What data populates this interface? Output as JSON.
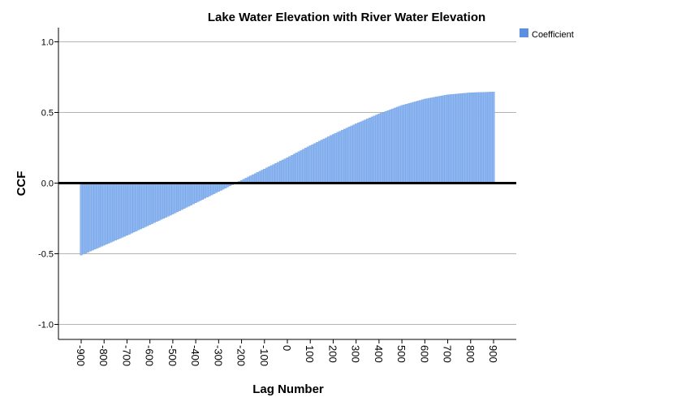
{
  "chart_data": {
    "type": "bar",
    "title": "Lake Water Elevation with River Water Elevation",
    "xlabel": "Lag Number",
    "ylabel": "CCF",
    "xlim": [
      -900,
      900
    ],
    "ylim": [
      -1.1,
      1.1
    ],
    "x_ticks": [
      "-900",
      "-800",
      "-700",
      "-600",
      "-500",
      "-400",
      "-300",
      "-200",
      "-100",
      "0",
      "100",
      "200",
      "300",
      "400",
      "500",
      "600",
      "700",
      "800",
      "900"
    ],
    "y_ticks": [
      "1.0",
      "0.5",
      "0.0",
      "-0.5",
      "-1.0"
    ],
    "grid": true,
    "reference_line": 0.0,
    "legend_position": "top-right",
    "series": [
      {
        "name": "Coefficient",
        "color": "#8db6f0",
        "edge_color": "#5a8fdc",
        "x": [
          -900,
          -800,
          -700,
          -600,
          -500,
          -400,
          -300,
          -200,
          -100,
          0,
          100,
          200,
          300,
          400,
          500,
          600,
          700,
          800,
          900
        ],
        "values": [
          -0.51,
          -0.44,
          -0.37,
          -0.295,
          -0.22,
          -0.14,
          -0.06,
          0.02,
          0.1,
          0.18,
          0.265,
          0.345,
          0.42,
          0.49,
          0.55,
          0.595,
          0.625,
          0.64,
          0.645
        ]
      }
    ]
  }
}
